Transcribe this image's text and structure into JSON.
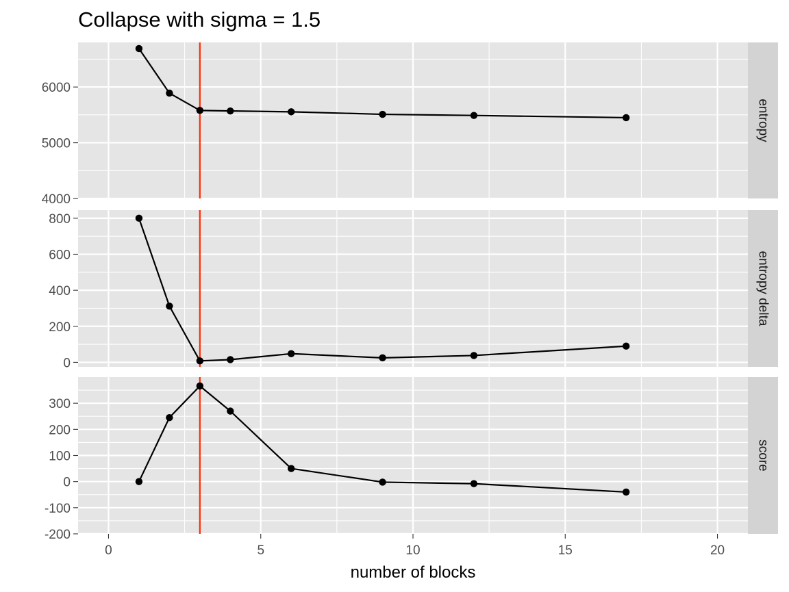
{
  "chart_data": {
    "type": "line",
    "title": "Collapse with sigma = 1.5",
    "xlabel": "number of blocks",
    "xlim": [
      -1,
      21
    ],
    "x_ticks": [
      0,
      5,
      10,
      15,
      20
    ],
    "x_tick_labels": [
      "0",
      "5",
      "10",
      "15",
      "20"
    ],
    "vline": {
      "x": 3,
      "color": "#ff2a00"
    },
    "x": [
      1,
      2,
      3,
      4,
      6,
      9,
      12,
      17
    ],
    "panels": [
      {
        "strip": "entropy",
        "ylim": [
          4000,
          6800
        ],
        "y_ticks": [
          4000,
          5000,
          6000
        ],
        "y_tick_labels": [
          "4000",
          "5000",
          "6000"
        ],
        "values": [
          6690,
          5890,
          5580,
          5570,
          5555,
          5510,
          5490,
          5450
        ]
      },
      {
        "strip": "entropy delta",
        "ylim": [
          -25,
          845
        ],
        "y_ticks": [
          0,
          200,
          400,
          600,
          800
        ],
        "y_tick_labels": [
          "0",
          "200",
          "400",
          "600",
          "800"
        ],
        "values": [
          800,
          312,
          8,
          15,
          48,
          25,
          38,
          90
        ]
      },
      {
        "strip": "score",
        "ylim": [
          -200,
          400
        ],
        "y_ticks": [
          -200,
          -100,
          0,
          100,
          200,
          300
        ],
        "y_tick_labels": [
          "-200",
          "-100",
          "0",
          "100",
          "200",
          "300"
        ],
        "values": [
          0,
          245,
          366,
          270,
          50,
          -2,
          -8,
          -40
        ]
      }
    ],
    "colors": {
      "panel_bg": "#e5e5e5",
      "grid": "#ffffff",
      "strip_bg": "#d3d3d3",
      "line": "#000000"
    }
  }
}
